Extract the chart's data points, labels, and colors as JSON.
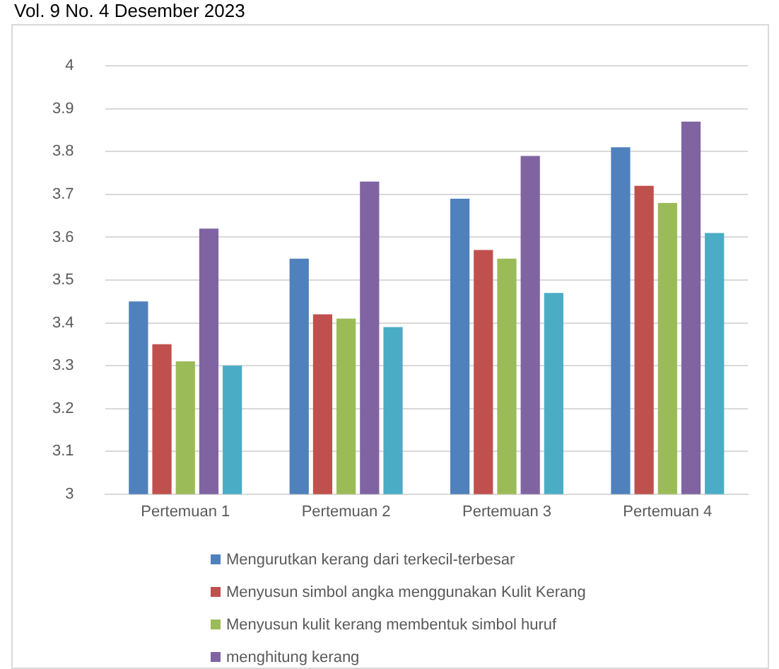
{
  "chart_data": {
    "type": "bar",
    "annotations": [
      "Vol. 9 No. 4 Desember 2023"
    ],
    "categories": [
      "Pertemuan 1",
      "Pertemuan 2",
      "Pertemuan 3",
      "Pertemuan 4"
    ],
    "series": [
      {
        "name": "Mengurutkan kerang dari terkecil-terbesar",
        "color": "#4f81bd",
        "values": [
          3.45,
          3.55,
          3.69,
          3.81
        ]
      },
      {
        "name": "Menyusun simbol angka menggunakan Kulit Kerang",
        "color": "#c0504d",
        "values": [
          3.35,
          3.42,
          3.57,
          3.72
        ]
      },
      {
        "name": "Menyusun kulit kerang membentuk simbol huruf",
        "color": "#9bbb59",
        "values": [
          3.31,
          3.41,
          3.55,
          3.68
        ]
      },
      {
        "name": "menghitung kerang",
        "color": "#8064a2",
        "values": [
          3.62,
          3.73,
          3.79,
          3.87
        ]
      },
      {
        "color": "#4bacc6",
        "values": [
          3.3,
          3.39,
          3.47,
          3.61
        ]
      }
    ],
    "ylim": [
      3,
      4
    ],
    "yticks": [
      3,
      3.1,
      3.2,
      3.3,
      3.4,
      3.5,
      3.6,
      3.7,
      3.8,
      3.9,
      4
    ],
    "grid": "y",
    "legend": "bottom"
  }
}
